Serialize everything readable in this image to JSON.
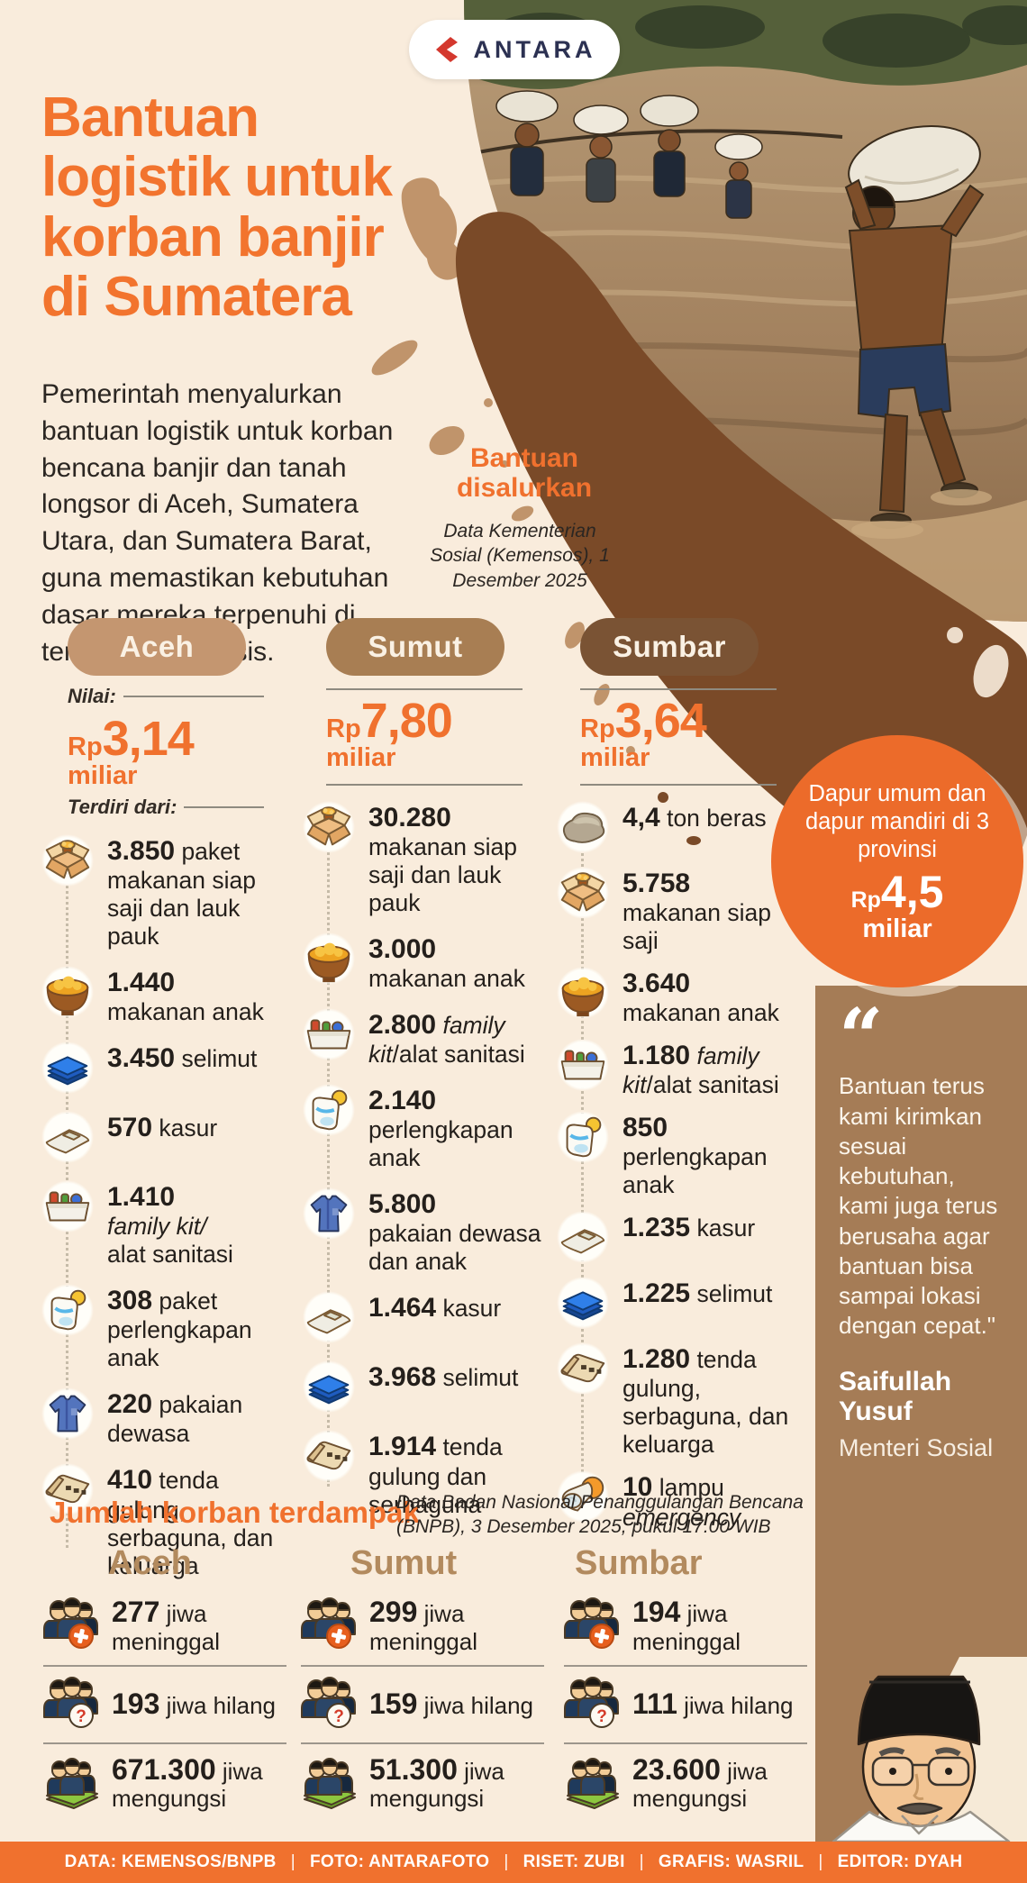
{
  "colors": {
    "accent_orange": "#f0712e",
    "cream": "#f9ecdc",
    "pill_aceh": "#c49670",
    "pill_sumut": "#a87e53",
    "pill_sumbar": "#7a5334",
    "panel_brown": "#a57c56",
    "map_tan": "#c0946b",
    "map_dark": "#7a4a28",
    "logo_red": "#d4382e",
    "logo_navy": "#2c3152"
  },
  "logo": {
    "text": "ANTARA"
  },
  "header": {
    "title_lines": [
      "Bantuan",
      "logistik untuk",
      "korban banjir",
      "di Sumatera"
    ]
  },
  "intro": "Pemerintah menyalurkan bantuan logistik untuk korban bencana banjir dan tanah longsor di Aceh, Sumatera Utara, dan Sumatera Barat, guna memastikan kebutuhan dasar mereka terpenuhi di tengah masa krisis.",
  "aid": {
    "label": "Bantuan disalurkan",
    "source": "Data Kementerian Sosial (Kemensos), 1 Desember 2025",
    "nilai_label": "Nilai:",
    "terdiri_label": "Terdiri dari:",
    "provinces": [
      {
        "name": "Aceh",
        "color": "#c49670",
        "show_labels": true,
        "rp": "Rp",
        "amount": "3,14",
        "unit": " miliar",
        "items": [
          {
            "icon": "box",
            "num": "3.850",
            "text": "paket makanan siap saji dan lauk pauk"
          },
          {
            "icon": "bowl",
            "num": "1.440",
            "text": "|makanan anak"
          },
          {
            "icon": "blanket",
            "num": "3.450",
            "text": "selimut"
          },
          {
            "icon": "mattress",
            "num": "570",
            "text": "kasur"
          },
          {
            "icon": "familykit",
            "num": "1.410",
            "text": "|*family kit/*|alat sanitasi"
          },
          {
            "icon": "babykit",
            "num": "308",
            "text": "paket perlengkapan anak"
          },
          {
            "icon": "shirt",
            "num": "220",
            "text": "pakaian dewasa"
          },
          {
            "icon": "tent",
            "num": "410",
            "text": "tenda gulung, serbaguna, dan keluarga"
          }
        ]
      },
      {
        "name": "Sumut",
        "color": "#a87e53",
        "show_labels": false,
        "rp": "Rp",
        "amount": "7,80",
        "unit": " miliar",
        "items": [
          {
            "icon": "box",
            "num": "30.280",
            "text": "|makanan siap saji dan lauk pauk"
          },
          {
            "icon": "bowl",
            "num": "3.000",
            "text": "|makanan anak"
          },
          {
            "icon": "familykit",
            "num": "2.800",
            "text": "*family kit*/alat sanitasi"
          },
          {
            "icon": "babykit",
            "num": "2.140",
            "text": "|perlengkapan anak"
          },
          {
            "icon": "shirt",
            "num": "5.800",
            "text": "|pakaian dewasa dan anak"
          },
          {
            "icon": "mattress",
            "num": "1.464",
            "text": "kasur"
          },
          {
            "icon": "blanket",
            "num": "3.968",
            "text": "selimut"
          },
          {
            "icon": "tent",
            "num": "1.914",
            "text": "tenda gulung dan serbaguna"
          }
        ]
      },
      {
        "name": "Sumbar",
        "color": "#7a5334",
        "show_labels": false,
        "rp": "Rp",
        "amount": "3,64",
        "unit": " miliar",
        "items": [
          {
            "icon": "rice",
            "num": "4,4",
            "text": "ton beras"
          },
          {
            "icon": "box",
            "num": "5.758",
            "text": "|makanan siap saji"
          },
          {
            "icon": "bowl",
            "num": "3.640",
            "text": "|makanan anak"
          },
          {
            "icon": "familykit",
            "num": "1.180",
            "text": "*family kit*/alat sanitasi"
          },
          {
            "icon": "babykit",
            "num": "850",
            "text": "|perlengkapan anak"
          },
          {
            "icon": "mattress",
            "num": "1.235",
            "text": "kasur"
          },
          {
            "icon": "blanket",
            "num": "1.225",
            "text": "selimut"
          },
          {
            "icon": "tent",
            "num": "1.280",
            "text": "tenda gulung, serbaguna, dan keluarga"
          },
          {
            "icon": "lamp",
            "num": "10",
            "text": "lampu *emergency*"
          }
        ]
      }
    ]
  },
  "kitchen": {
    "text": "Dapur umum dan dapur mandiri di 3 provinsi",
    "rp": "Rp",
    "amount": "4,5",
    "unit": "miliar"
  },
  "quote": {
    "mark": "“",
    "text": "Bantuan terus kami kirimkan sesuai kebutuhan, kami juga terus berusaha agar bantuan bisa sampai lokasi dengan cepat.\"",
    "author": "Saifullah Yusuf",
    "role": "Menteri Sosial"
  },
  "victims": {
    "heading": "Jumlah korban terdampak",
    "source": "Data Badan Nasional Penanggulangan Bencana (BNPB), 3 Desember 2025, pukul 17.00 WIB",
    "provinces": [
      {
        "name": "Aceh",
        "rows": [
          {
            "icon": "dead",
            "num": "277",
            "text": "jiwa meninggal"
          },
          {
            "icon": "missing",
            "num": "193",
            "text": "jiwa hilang"
          },
          {
            "icon": "evac",
            "num": "671.300",
            "text": "jiwa mengungsi"
          }
        ]
      },
      {
        "name": "Sumut",
        "rows": [
          {
            "icon": "dead",
            "num": "299",
            "text": "jiwa meninggal"
          },
          {
            "icon": "missing",
            "num": "159",
            "text": "jiwa hilang"
          },
          {
            "icon": "evac",
            "num": "51.300",
            "text": "jiwa mengungsi"
          }
        ]
      },
      {
        "name": "Sumbar",
        "rows": [
          {
            "icon": "dead",
            "num": "194",
            "text": "jiwa meninggal"
          },
          {
            "icon": "missing",
            "num": "111",
            "text": "jiwa hilang"
          },
          {
            "icon": "evac",
            "num": "23.600",
            "text": "jiwa mengungsi"
          }
        ]
      }
    ]
  },
  "footer": {
    "credits": [
      "DATA: KEMENSOS/BNPB",
      "FOTO: ANTARAFOTO",
      "RISET: ZUBI",
      "GRAFIS: WASRIL",
      "EDITOR: DYAH"
    ],
    "separator": "|"
  }
}
